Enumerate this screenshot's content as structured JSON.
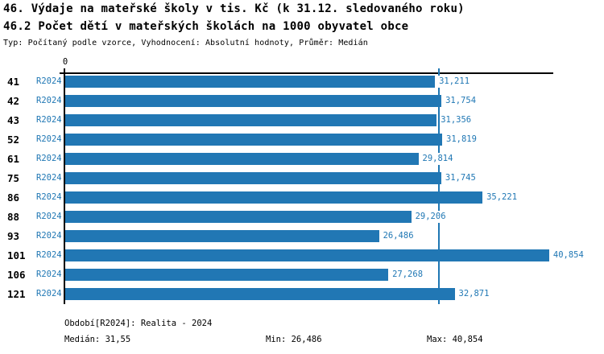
{
  "title_line1": "46. Výdaje na mateřské školy v tis. Kč (k 31.12. sledovaného roku)",
  "title_line2": "46.2 Počet dětí v mateřských školách na 1000 obyvatel obce",
  "subtitle": "Typ: Počítaný podle vzorce, Vyhodnocení: Absolutní hodnoty, Průměr: Medián",
  "axis": {
    "zero_label": "0"
  },
  "colors": {
    "bar": "#2177b4",
    "accent_text": "#1f77b4",
    "median_line": "#1f77b4",
    "axis": "#000000"
  },
  "chart_data": {
    "type": "bar",
    "orientation": "horizontal",
    "title": "46. Výdaje na mateřské školy v tis. Kč (k 31.12. sledovaného roku)",
    "subtitle": "46.2 Počet dětí v mateřských školách na 1000 obyvatel obce",
    "categories": [
      "41",
      "42",
      "43",
      "52",
      "61",
      "75",
      "86",
      "88",
      "93",
      "101",
      "106",
      "121"
    ],
    "series_label": "R2024",
    "values": [
      31211,
      31754,
      31356,
      31819,
      29814,
      31745,
      35221,
      29206,
      26486,
      40854,
      27268,
      32871
    ],
    "value_labels": [
      "31,211",
      "31,754",
      "31,356",
      "31,819",
      "29,814",
      "31,745",
      "35,221",
      "29,206",
      "26,486",
      "40,854",
      "27,268",
      "32,871"
    ],
    "xlim": [
      0,
      41200
    ],
    "median_value": 31550,
    "median_label": "31,55",
    "min_value": 26486,
    "max_value": 40854,
    "grid": false,
    "legend_position": "none"
  },
  "footer": {
    "period": "Období[R2024]: Realita - 2024",
    "median": "Medián: 31,55",
    "min": "Min: 26,486",
    "max": "Max: 40,854"
  }
}
